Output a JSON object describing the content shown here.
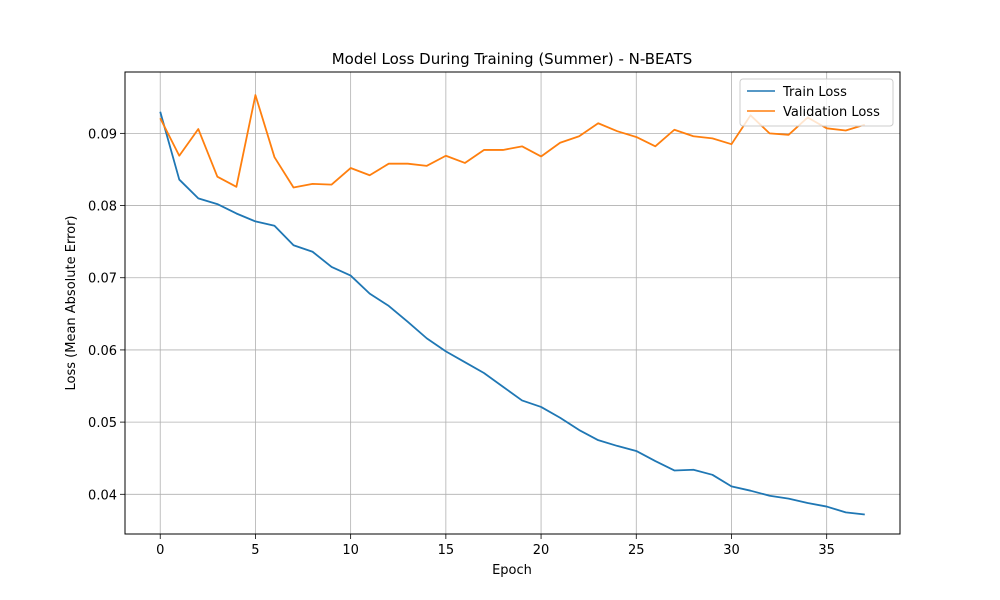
{
  "chart_data": {
    "type": "line",
    "title": "Model Loss During Training (Summer) - N-BEATS",
    "xlabel": "Epoch",
    "ylabel": "Loss (Mean Absolute Error)",
    "xlim": [
      -1.85,
      38.85
    ],
    "ylim": [
      0.0345,
      0.0985
    ],
    "xticks": [
      0,
      5,
      10,
      15,
      20,
      25,
      30,
      35
    ],
    "yticks": [
      0.04,
      0.05,
      0.06,
      0.07,
      0.08,
      0.09
    ],
    "ytick_labels": [
      "0.04",
      "0.05",
      "0.06",
      "0.07",
      "0.08",
      "0.09"
    ],
    "grid": true,
    "legend_position": "top-right",
    "x": [
      0,
      1,
      2,
      3,
      4,
      5,
      6,
      7,
      8,
      9,
      10,
      11,
      12,
      13,
      14,
      15,
      16,
      17,
      18,
      19,
      20,
      21,
      22,
      23,
      24,
      25,
      26,
      27,
      28,
      29,
      30,
      31,
      32,
      33,
      34,
      35,
      36,
      37
    ],
    "series": [
      {
        "name": "Train Loss",
        "color": "#1f77b4",
        "values": [
          0.093,
          0.0836,
          0.081,
          0.0802,
          0.0789,
          0.0778,
          0.0772,
          0.0745,
          0.0736,
          0.0715,
          0.0703,
          0.0678,
          0.0661,
          0.0639,
          0.0616,
          0.0598,
          0.0583,
          0.0568,
          0.0549,
          0.053,
          0.0521,
          0.0506,
          0.0489,
          0.0475,
          0.0467,
          0.046,
          0.0446,
          0.0433,
          0.0434,
          0.0427,
          0.0411,
          0.0405,
          0.0398,
          0.0394,
          0.0388,
          0.0383,
          0.0375,
          0.0372
        ]
      },
      {
        "name": "Validation Loss",
        "color": "#ff7f0e",
        "values": [
          0.0921,
          0.0869,
          0.0906,
          0.084,
          0.0826,
          0.0953,
          0.0867,
          0.0825,
          0.083,
          0.0829,
          0.0852,
          0.0842,
          0.0858,
          0.0858,
          0.0855,
          0.0869,
          0.0859,
          0.0877,
          0.0877,
          0.0882,
          0.0868,
          0.0887,
          0.0896,
          0.0914,
          0.0903,
          0.0895,
          0.0882,
          0.0905,
          0.0896,
          0.0893,
          0.0885,
          0.0925,
          0.09,
          0.0898,
          0.0922,
          0.0907,
          0.0904,
          0.0912
        ]
      }
    ]
  }
}
